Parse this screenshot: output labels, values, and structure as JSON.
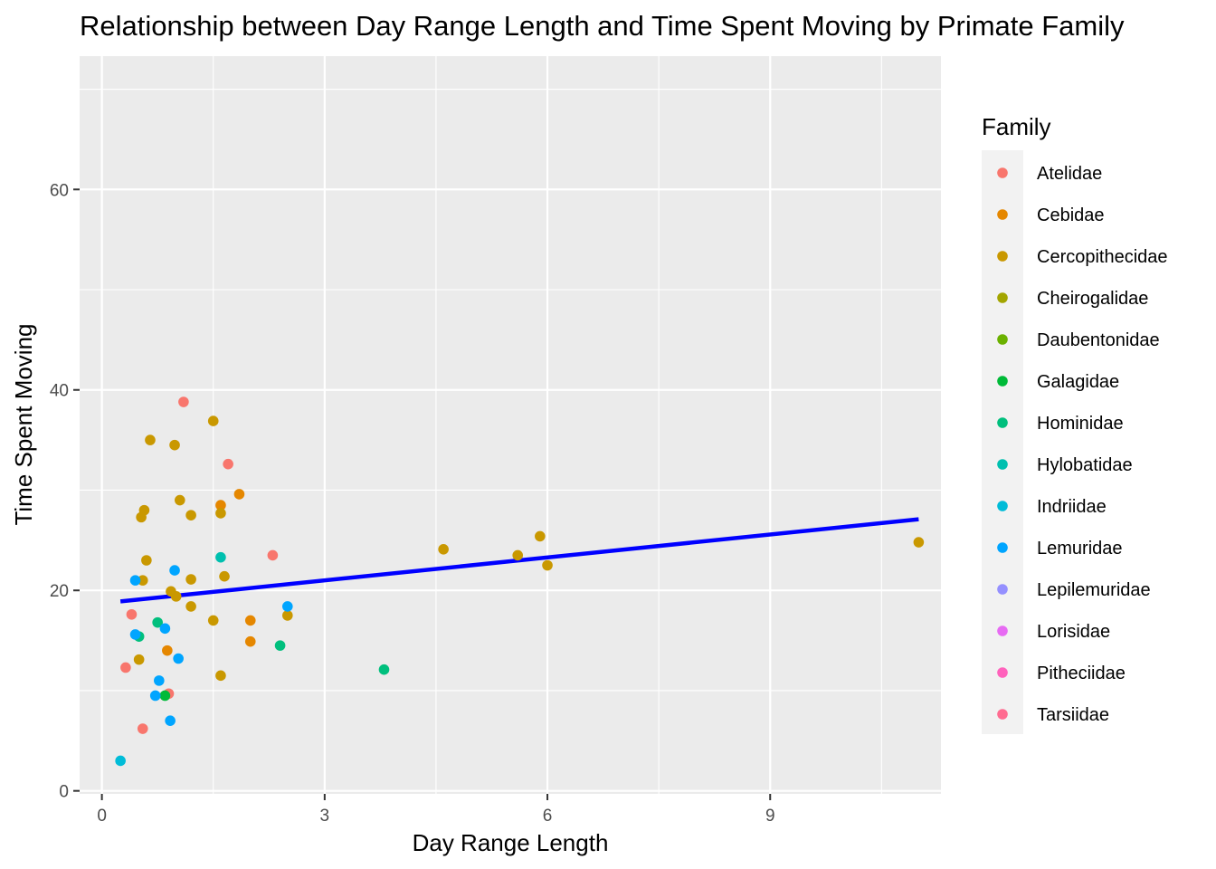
{
  "chart_data": {
    "type": "scatter",
    "title": "Relationship between Day Range Length and Time Spent Moving by Primate Family",
    "xlabel": "Day Range Length",
    "ylabel": "Time Spent Moving",
    "xlim": [
      -0.3,
      11.3
    ],
    "ylim": [
      -0.3,
      73.3
    ],
    "x_ticks": [
      0,
      3,
      6,
      9
    ],
    "y_ticks": [
      0,
      20,
      40,
      60
    ],
    "grid": true,
    "legend": {
      "title": "Family",
      "position": "right",
      "entries": [
        {
          "name": "Atelidae",
          "color": "#F8766D"
        },
        {
          "name": "Cebidae",
          "color": "#E58700"
        },
        {
          "name": "Cercopithecidae",
          "color": "#C99800"
        },
        {
          "name": "Cheirogalidae",
          "color": "#A3A500"
        },
        {
          "name": "Daubentonidae",
          "color": "#6BB100"
        },
        {
          "name": "Galagidae",
          "color": "#00BA38"
        },
        {
          "name": "Hominidae",
          "color": "#00BF7D"
        },
        {
          "name": "Hylobatidae",
          "color": "#00C0AF"
        },
        {
          "name": "Indriidae",
          "color": "#00BCD8"
        },
        {
          "name": "Lemuridae",
          "color": "#00A5FF"
        },
        {
          "name": "Lepilemuridae",
          "color": "#9590FF"
        },
        {
          "name": "Lorisidae",
          "color": "#E76BF3"
        },
        {
          "name": "Pitheciidae",
          "color": "#FF62BC"
        },
        {
          "name": "Tarsiidae",
          "color": "#FF6C91"
        }
      ]
    },
    "series": [
      {
        "name": "Atelidae",
        "color": "#F8766D",
        "points": [
          [
            1.1,
            38.8
          ],
          [
            1.7,
            32.6
          ],
          [
            2.3,
            23.5
          ],
          [
            0.4,
            17.6
          ],
          [
            0.32,
            12.3
          ],
          [
            0.55,
            6.2
          ],
          [
            0.9,
            9.7
          ]
        ]
      },
      {
        "name": "Cebidae",
        "color": "#E58700",
        "points": [
          [
            1.6,
            28.5
          ],
          [
            1.85,
            29.6
          ],
          [
            2.0,
            17.0
          ],
          [
            2.0,
            14.9
          ],
          [
            0.88,
            14.0
          ]
        ]
      },
      {
        "name": "Cercopithecidae",
        "color": "#C99800",
        "points": [
          [
            1.5,
            36.9
          ],
          [
            0.65,
            35.0
          ],
          [
            0.98,
            34.5
          ],
          [
            1.05,
            29.0
          ],
          [
            0.57,
            28.0
          ],
          [
            0.53,
            27.3
          ],
          [
            1.2,
            27.5
          ],
          [
            1.6,
            27.7
          ],
          [
            0.6,
            23.0
          ],
          [
            1.65,
            21.4
          ],
          [
            1.2,
            21.1
          ],
          [
            0.55,
            21.0
          ],
          [
            0.93,
            19.9
          ],
          [
            1.0,
            19.4
          ],
          [
            1.2,
            18.4
          ],
          [
            1.5,
            17.0
          ],
          [
            0.5,
            13.1
          ],
          [
            1.6,
            11.5
          ],
          [
            2.5,
            17.5
          ],
          [
            4.6,
            24.1
          ],
          [
            5.6,
            23.5
          ],
          [
            5.9,
            25.4
          ],
          [
            6.0,
            22.5
          ],
          [
            11.0,
            24.8
          ]
        ]
      },
      {
        "name": "Galagidae",
        "color": "#00BA38",
        "points": [
          [
            0.85,
            9.5
          ]
        ]
      },
      {
        "name": "Hominidae",
        "color": "#00BF7D",
        "points": [
          [
            0.75,
            16.8
          ],
          [
            0.5,
            15.4
          ],
          [
            2.4,
            14.5
          ],
          [
            3.8,
            12.1
          ]
        ]
      },
      {
        "name": "Hylobatidae",
        "color": "#00C0AF",
        "points": [
          [
            1.6,
            23.3
          ]
        ]
      },
      {
        "name": "Indriidae",
        "color": "#00BCD8",
        "points": [
          [
            0.25,
            3.0
          ]
        ]
      },
      {
        "name": "Lemuridae",
        "color": "#00A5FF",
        "points": [
          [
            0.98,
            22.0
          ],
          [
            0.45,
            21.0
          ],
          [
            0.45,
            15.6
          ],
          [
            0.85,
            16.2
          ],
          [
            1.03,
            13.2
          ],
          [
            2.5,
            18.4
          ],
          [
            0.77,
            11.0
          ],
          [
            0.72,
            9.5
          ],
          [
            0.92,
            7.0
          ]
        ]
      }
    ],
    "trend_line": {
      "color": "#0000FF",
      "points": [
        [
          0.25,
          18.9
        ],
        [
          11.0,
          27.1
        ]
      ]
    }
  }
}
